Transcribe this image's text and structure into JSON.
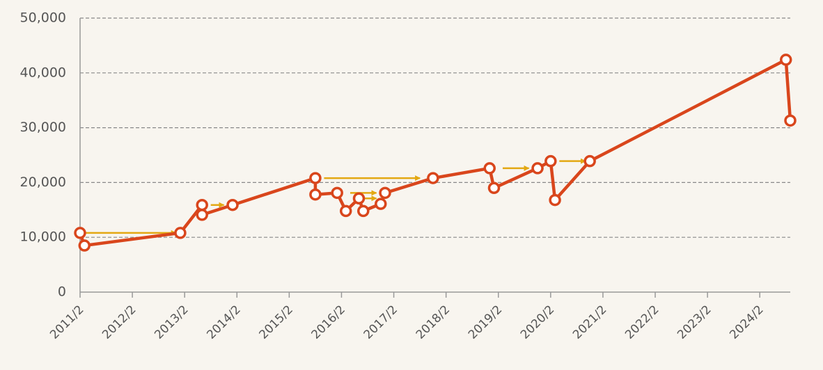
{
  "chart_data": {
    "type": "line",
    "x": [
      "2011/2",
      "2011/3",
      "2013/1",
      "2013/6",
      "2013/6",
      "2014/1",
      "2015/8",
      "2015/8",
      "2016/1",
      "2016/3",
      "2016/6",
      "2016/7",
      "2016/11",
      "2016/12",
      "2017/11",
      "2018/12",
      "2019/1",
      "2019/11",
      "2020/2",
      "2020/3",
      "2020/11",
      "2024/8",
      "2024/9"
    ],
    "values": [
      10800,
      8500,
      10800,
      15900,
      14100,
      15900,
      20800,
      17800,
      18100,
      14800,
      17100,
      14800,
      16100,
      18100,
      20800,
      22600,
      19000,
      22600,
      23900,
      16800,
      23900,
      42400,
      31300
    ],
    "color": "#d9461c",
    "xlim": [
      "2011/2",
      "2024/9"
    ],
    "xticks": [
      "2011/2",
      "2012/2",
      "2013/2",
      "2014/2",
      "2015/2",
      "2016/2",
      "2017/2",
      "2018/2",
      "2019/2",
      "2020/2",
      "2021/2",
      "2022/2",
      "2023/2",
      "2024/2"
    ],
    "ylim": [
      0,
      50000
    ],
    "yticks": [
      0,
      {
        "value": 10000,
        "label": "10,000"
      },
      {
        "value": 20000,
        "label": "20,000"
      },
      {
        "value": 30000,
        "label": "30,000"
      },
      {
        "value": 40000,
        "label": "40,000"
      },
      {
        "value": 50000,
        "label": "50,000"
      }
    ],
    "grid": true,
    "arrow_color": "#e3a812",
    "arrows": [
      {
        "x": [
          "2011/2",
          "2012/12"
        ],
        "y": 10800
      },
      {
        "x": [
          "2013/8",
          "2013/11"
        ],
        "y": 15900
      },
      {
        "x": [
          "2015/10",
          "2017/8"
        ],
        "y": 20800
      },
      {
        "x": [
          "2016/4",
          "2016/10"
        ],
        "y": 18100
      },
      {
        "x": [
          "2016/7",
          "2016/10"
        ],
        "y": 17100
      },
      {
        "x": [
          "2019/3",
          "2019/9"
        ],
        "y": 22600
      },
      {
        "x": [
          "2020/4",
          "2020/10"
        ],
        "y": 23900
      }
    ]
  }
}
